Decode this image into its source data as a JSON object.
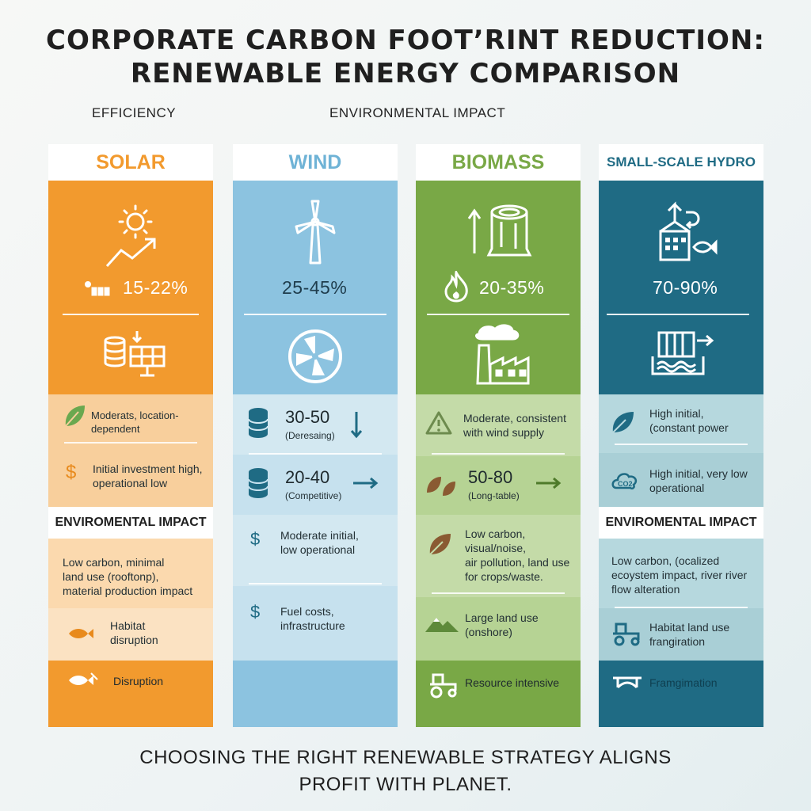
{
  "title": {
    "line1": "Corporate Carbon Foot’rint Reduction:",
    "line2": "Renewable Energy Comparison"
  },
  "subheads": {
    "efficiency": "Efficiency",
    "environmental": "Environmental Impact"
  },
  "colors": {
    "solar": "#f29a2e",
    "solar_light": "#f8cf9c",
    "wind": "#8cc3e0",
    "wind_light": "#c6e1ee",
    "biomass": "#79a846",
    "biomass_light": "#c4dba8",
    "hydro": "#1f6b84",
    "hydro_light": "#a9cfd6"
  },
  "solar": {
    "header": "Solar",
    "efficiency": "15-22%",
    "row1": "Moderats, location-dependent",
    "row2_l1": "Initial investment high,",
    "row2_l2": "operational low",
    "env_head": "Enviromental Impact",
    "env1_l1": "Low carbon, minimal",
    "env1_l2": "land use (rooftonp),",
    "env1_l3": "material production impact",
    "env2_l1": "Habitat",
    "env2_l2": "disruption",
    "env3": "Disruption"
  },
  "wind": {
    "header": "Wind",
    "efficiency": "25-45%",
    "row1_num": "30-50",
    "row1_sub": "(Deresaing)",
    "row2_num": "20-40",
    "row2_sub": "(Competitive)",
    "row3_l1": "Moderate initial,",
    "row3_l2": "low operational",
    "row4_l1": "Fuel costs,",
    "row4_l2": "infrastructure"
  },
  "biomass": {
    "header": "Biomass",
    "efficiency": "20-35%",
    "row1_l1": "Moderate, consistent",
    "row1_l2": "with wind supply",
    "row2_num": "50-80",
    "row2_sub": "(Long-table)",
    "row3_l1": "Low carbon,",
    "row3_l2": "visual/noise,",
    "row3_l3": "air pollution, land use",
    "row3_l4": "for crops/waste.",
    "row4_l1": "Large land use",
    "row4_l2": "(onshore)",
    "row5": "Resource intensive"
  },
  "hydro": {
    "header": "Small-Scale Hydro",
    "efficiency": "70-90%",
    "row1_l1": "High initial,",
    "row1_l2": "(constant power",
    "row2_l1": "High initial, very low",
    "row2_l2": "operational",
    "env_head": "Enviromental Impact",
    "env1_l1": "Low carbon, (ocalized",
    "env1_l2": "ecoystem impact, river river",
    "env1_l3": "flow alteration",
    "env2_l1": "Habitat land use",
    "env2_l2": "frangiration",
    "env3": "Framgimation"
  },
  "footer": {
    "line1": "Choosing the right renewable strategy aligns",
    "line2": "profit with planet."
  }
}
